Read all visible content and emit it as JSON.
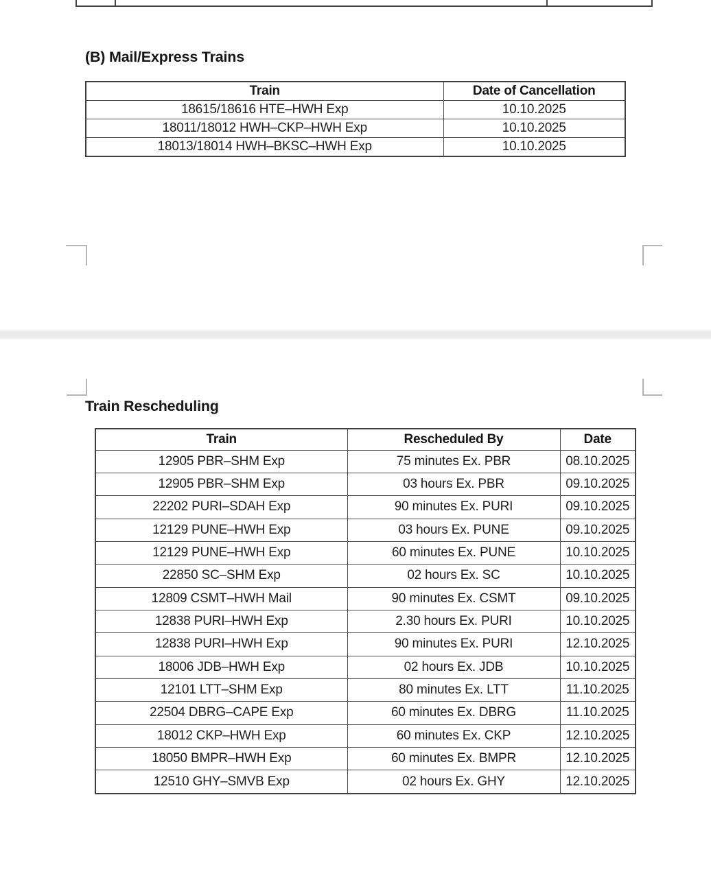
{
  "colors": {
    "table_border": "#4a4a4a",
    "text": "#1f1f1f",
    "page_gap_band": "#ebebeb",
    "margin_mark": "#b5b5b5"
  },
  "section_b": {
    "heading": "(B) Mail/Express Trains",
    "table": {
      "columns": [
        "Train",
        "Date of Cancellation"
      ],
      "rows": [
        [
          "18615/18616 HTE–HWH Exp",
          "10.10.2025"
        ],
        [
          "18011/18012 HWH–CKP–HWH Exp",
          "10.10.2025"
        ],
        [
          "18013/18014 HWH–BKSC–HWH Exp",
          "10.10.2025"
        ]
      ]
    }
  },
  "section_resched": {
    "heading": "Train Rescheduling",
    "table": {
      "columns": [
        "Train",
        "Rescheduled By",
        "Date"
      ],
      "rows": [
        [
          "12905 PBR–SHM Exp",
          "75 minutes Ex. PBR",
          "08.10.2025"
        ],
        [
          "12905 PBR–SHM Exp",
          "03 hours Ex. PBR",
          "09.10.2025"
        ],
        [
          "22202 PURI–SDAH Exp",
          "90 minutes Ex. PURI",
          "09.10.2025"
        ],
        [
          "12129 PUNE–HWH Exp",
          "03 hours Ex. PUNE",
          "09.10.2025"
        ],
        [
          "12129 PUNE–HWH Exp",
          "60 minutes Ex. PUNE",
          "10.10.2025"
        ],
        [
          "22850 SC–SHM Exp",
          "02 hours Ex. SC",
          "10.10.2025"
        ],
        [
          "12809 CSMT–HWH Mail",
          "90 minutes Ex. CSMT",
          "09.10.2025"
        ],
        [
          "12838 PURI–HWH Exp",
          "2.30 hours Ex. PURI",
          "10.10.2025"
        ],
        [
          "12838 PURI–HWH Exp",
          "90 minutes Ex. PURI",
          "12.10.2025"
        ],
        [
          "18006 JDB–HWH Exp",
          "02 hours Ex. JDB",
          "10.10.2025"
        ],
        [
          "12101 LTT–SHM Exp",
          "80 minutes Ex. LTT",
          "11.10.2025"
        ],
        [
          "22504 DBRG–CAPE Exp",
          "60 minutes Ex. DBRG",
          "11.10.2025"
        ],
        [
          "18012 CKP–HWH Exp",
          "60 minutes Ex. CKP",
          "12.10.2025"
        ],
        [
          "18050 BMPR–HWH Exp",
          "60 minutes Ex. BMPR",
          "12.10.2025"
        ],
        [
          "12510 GHY–SMVB Exp",
          "02 hours Ex. GHY",
          "12.10.2025"
        ]
      ]
    }
  }
}
